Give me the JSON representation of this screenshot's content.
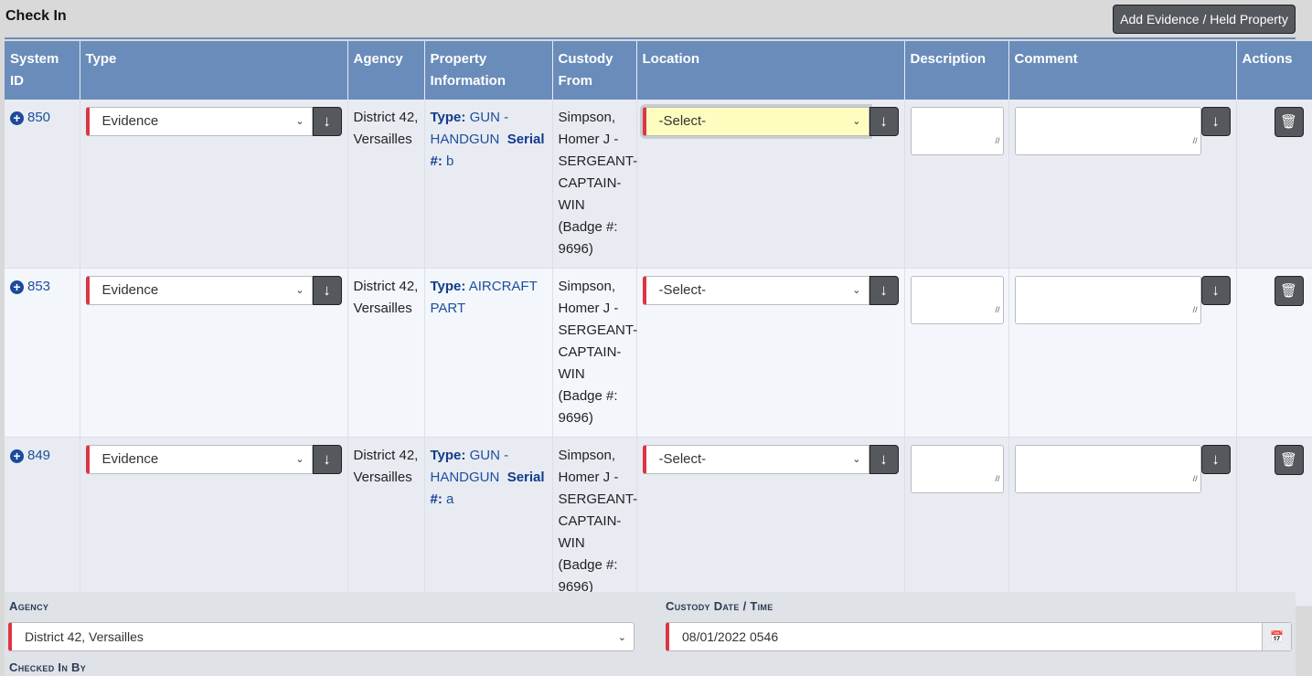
{
  "page": {
    "title": "Check In",
    "add_button": "Add Evidence / Held Property"
  },
  "table": {
    "headers": [
      "System ID",
      "Type",
      "Agency",
      "Property Information",
      "Custody From",
      "Location",
      "Description",
      "Comment",
      "Actions"
    ],
    "rows": [
      {
        "id": "850",
        "type": "Evidence",
        "agency": "District 42, Versailles",
        "prop_type_label": "Type:",
        "prop_type": "GUN - HANDGUN",
        "serial_label": "Serial #:",
        "serial": "b",
        "custody_from": "Simpson, Homer J - SERGEANT-CAPTAIN-WIN (Badge #: 9696)",
        "location": "-Select-",
        "description": "",
        "comment": ""
      },
      {
        "id": "853",
        "type": "Evidence",
        "agency": "District 42, Versailles",
        "prop_type_label": "Type:",
        "prop_type": "AIRCRAFT PART",
        "serial_label": "",
        "serial": "",
        "custody_from": "Simpson, Homer J - SERGEANT-CAPTAIN-WIN (Badge #: 9696)",
        "location": "-Select-",
        "description": "",
        "comment": ""
      },
      {
        "id": "849",
        "type": "Evidence",
        "agency": "District 42, Versailles",
        "prop_type_label": "Type:",
        "prop_type": "GUN - HANDGUN",
        "serial_label": "Serial #:",
        "serial": "a",
        "custody_from": "Simpson, Homer J - SERGEANT-CAPTAIN-WIN (Badge #: 9696)",
        "location": "-Select-",
        "description": "",
        "comment": ""
      }
    ]
  },
  "form": {
    "agency_label": "Agency",
    "agency_value": "District 42, Versailles",
    "custody_label": "Custody Date / Time",
    "custody_value": "08/01/2022 0546",
    "checked_in_label": "Checked In By"
  },
  "colors": {
    "header": "#6a8cba",
    "required": "#dc3545",
    "focus": "#fdfdc0",
    "button": "#55585d"
  }
}
